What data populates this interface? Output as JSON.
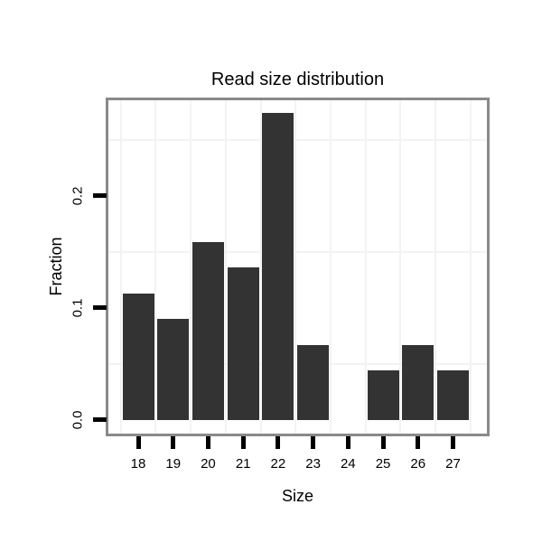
{
  "chart_data": {
    "type": "bar",
    "title": "Read size distribution",
    "xlabel": "Size",
    "ylabel": "Fraction",
    "categories": [
      "18",
      "19",
      "20",
      "21",
      "22",
      "23",
      "24",
      "25",
      "26",
      "27"
    ],
    "values": [
      0.113,
      0.09,
      0.159,
      0.136,
      0.274,
      0.067,
      0.0,
      0.044,
      0.067,
      0.044
    ],
    "y_tick_labels": [
      "0.0",
      "0.1",
      "0.2"
    ],
    "y_tick_values": [
      0.0,
      0.1,
      0.2
    ],
    "y_minor_gridlines": [
      0.05,
      0.15,
      0.25
    ],
    "x_minor_gridlines_at_half_units": true,
    "ylim": [
      -0.0125,
      0.2855
    ],
    "grid": "faint minor gridlines only, white panel background",
    "legend_position": "none",
    "colors": {
      "bar": "#333333",
      "panel_border": "#8a8a8a",
      "gridline": "#f3f3f3",
      "tick": "#000000",
      "text": "#000000",
      "background": "#ffffff"
    }
  }
}
